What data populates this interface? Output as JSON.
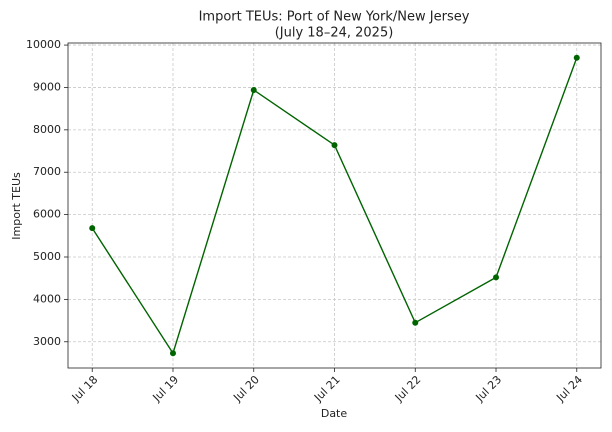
{
  "chart_data": {
    "type": "line",
    "title": "Import TEUs: Port of New York/New Jersey",
    "subtitle": "(July 18–24, 2025)",
    "x_label": "Date",
    "y_label": "Import TEUs",
    "categories": [
      "Jul 18",
      "Jul 19",
      "Jul 20",
      "Jul 21",
      "Jul 22",
      "Jul 23",
      "Jul 24"
    ],
    "series": [
      {
        "name": "Import TEUs",
        "color": "#006400",
        "values": [
          5680,
          2730,
          8940,
          7640,
          3450,
          4520,
          9700
        ]
      }
    ],
    "ylim": [
      2381,
      10049
    ],
    "yticks": [
      3000,
      4000,
      5000,
      6000,
      7000,
      8000,
      9000,
      10000
    ],
    "grid": true
  }
}
